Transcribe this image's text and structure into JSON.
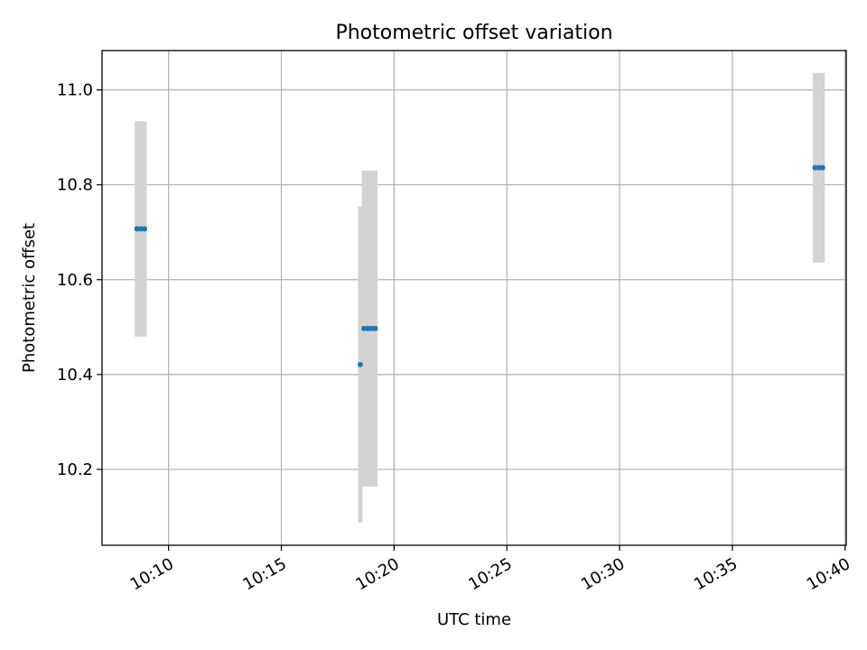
{
  "chart_data": {
    "type": "scatter",
    "title": "Photometric offset variation",
    "xlabel": "UTC time",
    "ylabel": "Photometric offset",
    "x_tick_labels": [
      "10:10",
      "10:15",
      "10:20",
      "10:25",
      "10:30",
      "10:35",
      "10:40"
    ],
    "x_ticks": [
      "10:10",
      "10:15",
      "10:20",
      "10:25",
      "10:30",
      "10:35",
      "10:40"
    ],
    "xlim": [
      "10:07:03",
      "10:40:03"
    ],
    "y_tick_labels": [
      "10.2",
      "10.4",
      "10.6",
      "10.8",
      "11.0"
    ],
    "y_ticks": [
      10.2,
      10.4,
      10.6,
      10.8,
      11.0
    ],
    "ylim": [
      10.04,
      11.083
    ],
    "grid": true,
    "legend": "none",
    "point_color": "#1f77b4",
    "errorbar_color": "#d3d3d3",
    "points": [
      {
        "x": "10:08:36",
        "y": 10.707,
        "yerr": 0.227
      },
      {
        "x": "10:08:46",
        "y": 10.707,
        "yerr": 0.227
      },
      {
        "x": "10:08:56",
        "y": 10.707,
        "yerr": 0.227
      },
      {
        "x": "10:18:30",
        "y": 10.421,
        "yerr": 0.333
      },
      {
        "x": "10:18:40",
        "y": 10.497,
        "yerr": 0.333
      },
      {
        "x": "10:18:50",
        "y": 10.497,
        "yerr": 0.333
      },
      {
        "x": "10:19:00",
        "y": 10.497,
        "yerr": 0.333
      },
      {
        "x": "10:19:10",
        "y": 10.497,
        "yerr": 0.333
      },
      {
        "x": "10:38:40",
        "y": 10.836,
        "yerr": 0.2
      },
      {
        "x": "10:38:50",
        "y": 10.836,
        "yerr": 0.2
      },
      {
        "x": "10:39:00",
        "y": 10.836,
        "yerr": 0.2
      }
    ]
  }
}
